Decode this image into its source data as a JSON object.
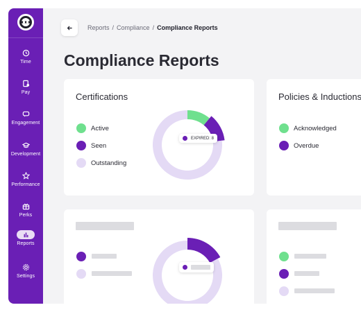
{
  "sidebar": {
    "logo_icon": "brand-logo-icon",
    "items": [
      {
        "label": "Time",
        "icon": "clock-icon"
      },
      {
        "label": "Pay",
        "icon": "payslip-icon"
      },
      {
        "label": "Engagement",
        "icon": "chat-icon"
      },
      {
        "label": "Development",
        "icon": "graduation-cap-icon"
      },
      {
        "label": "Performance",
        "icon": "star-icon"
      },
      {
        "label": "Perks",
        "icon": "gift-icon"
      },
      {
        "label": "Reports",
        "icon": "bar-chart-icon",
        "active": true
      },
      {
        "label": "Settings",
        "icon": "gear-icon"
      }
    ]
  },
  "header": {
    "back_icon": "arrow-left-icon",
    "breadcrumb": [
      "Reports",
      "Compliance",
      "Compliance Reports"
    ],
    "separator": "/",
    "title": "Compliance Reports"
  },
  "colors": {
    "sidebar": "#6a1fb5",
    "active": "#6fe08e",
    "seen": "#6a1fb5",
    "outstanding": "#e4daf5",
    "skeleton": "#dcdce0"
  },
  "cards": {
    "certifications": {
      "title": "Certifications",
      "legend": [
        "Active",
        "Seen",
        "Outstanding"
      ],
      "tooltip": "EXPIRED: 8"
    },
    "policies": {
      "title": "Policies & Inductions",
      "legend": [
        "Acknowledged",
        "Overdue"
      ]
    }
  },
  "chart_data": [
    {
      "type": "pie",
      "title": "Certifications",
      "labels": [
        "Active",
        "Seen",
        "Outstanding"
      ],
      "values": [
        11,
        12,
        77
      ],
      "unit": "percent",
      "annotation": "EXPIRED: 8"
    }
  ]
}
